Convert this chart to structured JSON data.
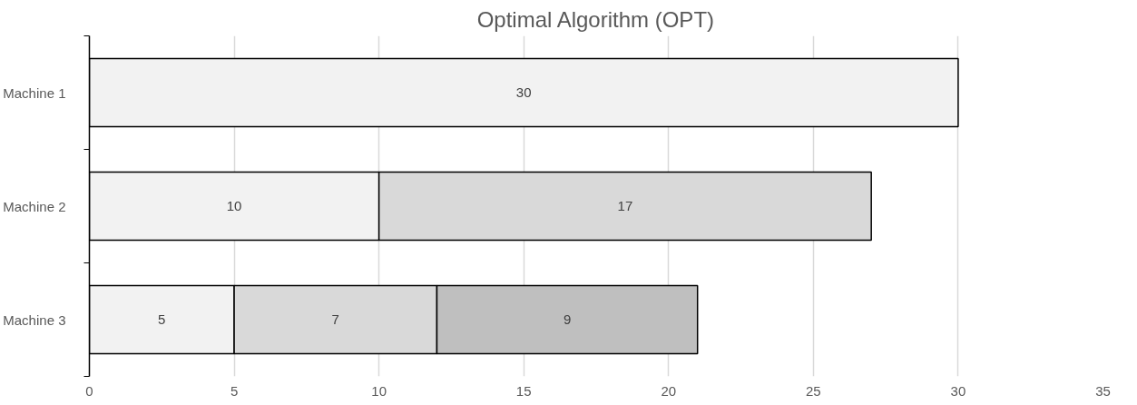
{
  "chart_data": {
    "type": "bar",
    "orientation": "horizontal",
    "stacked": true,
    "title": "Optimal Algorithm (OPT)",
    "categories": [
      "Machine 1",
      "Machine 2",
      "Machine 3"
    ],
    "series": [
      {
        "color": "#f2f2f2",
        "values": [
          30,
          10,
          5
        ]
      },
      {
        "color": "#d9d9d9",
        "values": [
          null,
          17,
          7
        ]
      },
      {
        "color": "#bfbfbf",
        "values": [
          null,
          null,
          9
        ]
      }
    ],
    "xlim": [
      0,
      35
    ],
    "xticks": [
      0,
      5,
      10,
      15,
      20,
      25,
      30,
      35
    ],
    "grid": "x",
    "data_labels": true
  }
}
